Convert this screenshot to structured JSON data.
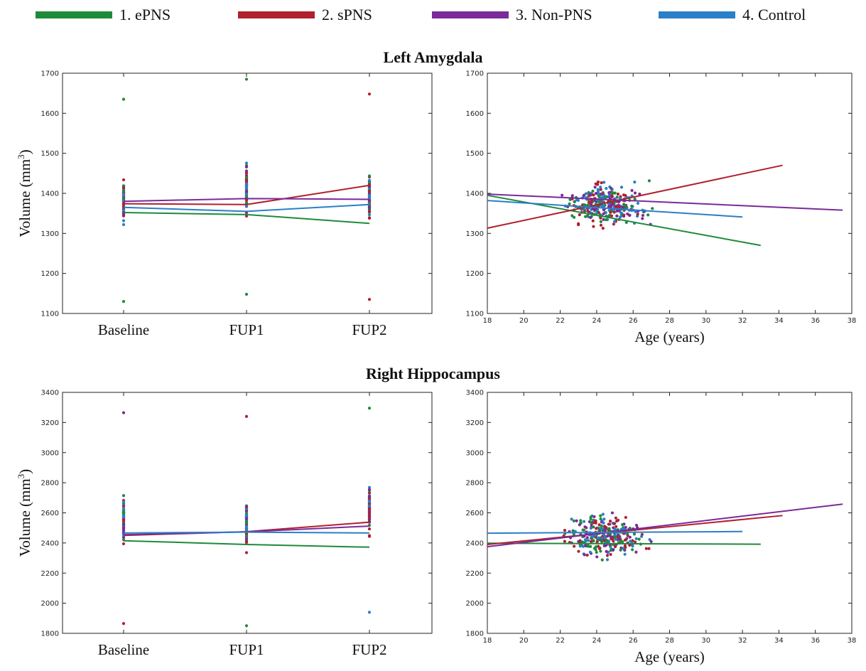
{
  "legend": [
    {
      "label": "1. ePNS",
      "color": "#1f8a3a"
    },
    {
      "label": "2. sPNS",
      "color": "#b0202e"
    },
    {
      "label": "3. Non-PNS",
      "color": "#7b2a99"
    },
    {
      "label": "4. Control",
      "color": "#2a7fc9"
    }
  ],
  "sections": [
    {
      "title": "Left Amygdala"
    },
    {
      "title": "Right Hippocampus"
    }
  ],
  "chart_data": [
    {
      "type": "line",
      "panel": "Left Amygdala — timepoints",
      "ylabel": "Volume (mm",
      "ylabel_sup": "3",
      "ylabel_close": ")",
      "categories": [
        "Baseline",
        "FUP1",
        "FUP2"
      ],
      "ylim": [
        1100,
        1700
      ],
      "yticks": [
        1100,
        1200,
        1300,
        1400,
        1500,
        1600,
        1700
      ],
      "series": [
        {
          "name": "1. ePNS",
          "values": [
            1352,
            1347,
            1325
          ]
        },
        {
          "name": "2. sPNS",
          "values": [
            1374,
            1372,
            1420
          ]
        },
        {
          "name": "3. Non-PNS",
          "values": [
            1380,
            1387,
            1385
          ]
        },
        {
          "name": "4. Control",
          "values": [
            1365,
            1355,
            1372
          ]
        }
      ],
      "scatter_range": [
        [
          1130,
          1635
        ],
        [
          1148,
          1685
        ],
        [
          1135,
          1648
        ]
      ]
    },
    {
      "type": "scatter",
      "panel": "Left Amygdala — age",
      "xlabel": "Age (years)",
      "xlim": [
        18,
        38
      ],
      "xticks": [
        18,
        20,
        22,
        24,
        26,
        28,
        30,
        32,
        34,
        36,
        38
      ],
      "ylim": [
        1100,
        1700
      ],
      "yticks": [
        1100,
        1200,
        1300,
        1400,
        1500,
        1600,
        1700
      ],
      "fit_lines": [
        {
          "name": "1. ePNS",
          "x": [
            18,
            33
          ],
          "y": [
            1395,
            1270
          ]
        },
        {
          "name": "2. sPNS",
          "x": [
            18,
            34.2
          ],
          "y": [
            1313,
            1470
          ]
        },
        {
          "name": "3. Non-PNS",
          "x": [
            18,
            37.5
          ],
          "y": [
            1398,
            1358
          ]
        },
        {
          "name": "4. Control",
          "x": [
            18,
            32
          ],
          "y": [
            1382,
            1341
          ]
        }
      ],
      "scatter_bounds": {
        "x": [
          18,
          37.5
        ],
        "y": [
          1140,
          1690
        ]
      }
    },
    {
      "type": "line",
      "panel": "Right Hippocampus — timepoints",
      "ylabel": "Volume (mm",
      "ylabel_sup": "3",
      "ylabel_close": ")",
      "categories": [
        "Baseline",
        "FUP1",
        "FUP2"
      ],
      "ylim": [
        1800,
        3400
      ],
      "yticks": [
        1800,
        2000,
        2200,
        2400,
        2600,
        2800,
        3000,
        3200,
        3400
      ],
      "series": [
        {
          "name": "1. ePNS",
          "values": [
            2415,
            2390,
            2372
          ]
        },
        {
          "name": "2. sPNS",
          "values": [
            2450,
            2475,
            2538
          ]
        },
        {
          "name": "3. Non-PNS",
          "values": [
            2455,
            2474,
            2512
          ]
        },
        {
          "name": "4. Control",
          "values": [
            2466,
            2472,
            2466
          ]
        }
      ],
      "scatter_range": [
        [
          1865,
          3265
        ],
        [
          1850,
          3240
        ],
        [
          1940,
          3295
        ]
      ]
    },
    {
      "type": "scatter",
      "panel": "Right Hippocampus — age",
      "xlabel": "Age (years)",
      "xlim": [
        18,
        38
      ],
      "xticks": [
        18,
        20,
        22,
        24,
        26,
        28,
        30,
        32,
        34,
        36,
        38
      ],
      "ylim": [
        1800,
        3400
      ],
      "yticks": [
        1800,
        2000,
        2200,
        2400,
        2600,
        2800,
        3000,
        3200,
        3400
      ],
      "fit_lines": [
        {
          "name": "1. ePNS",
          "x": [
            18,
            33
          ],
          "y": [
            2398,
            2392
          ]
        },
        {
          "name": "2. sPNS",
          "x": [
            18,
            34.2
          ],
          "y": [
            2390,
            2582
          ]
        },
        {
          "name": "3. Non-PNS",
          "x": [
            18,
            37.5
          ],
          "y": [
            2375,
            2658
          ]
        },
        {
          "name": "4. Control",
          "x": [
            18,
            32
          ],
          "y": [
            2465,
            2476
          ]
        }
      ],
      "scatter_bounds": {
        "x": [
          18,
          37.5
        ],
        "y": [
          1850,
          3270
        ]
      }
    }
  ]
}
